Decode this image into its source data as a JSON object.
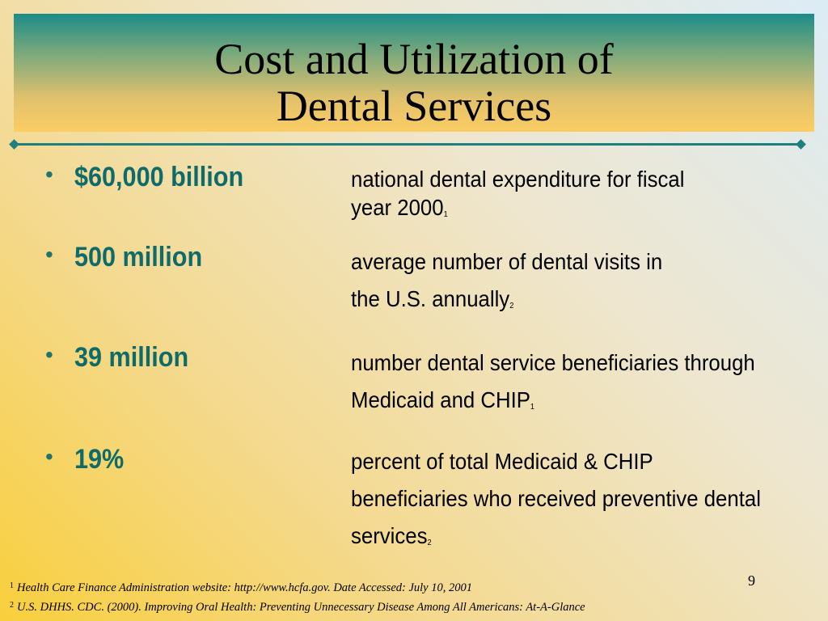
{
  "slide": {
    "title_line1": "Cost and Utilization of",
    "title_line2": "Dental Services",
    "page_number": "9"
  },
  "bullets": [
    {
      "symbol": "•",
      "stat": "$60,000 billion",
      "desc_lines": [
        "national dental expenditure for fiscal",
        "year 2000"
      ],
      "footnote_ref": "1"
    },
    {
      "symbol": "•",
      "stat": "500 million",
      "desc_lines": [
        "average number of dental visits in",
        "the U.S. annually"
      ],
      "footnote_ref": "2"
    },
    {
      "symbol": "•",
      "stat": "39 million",
      "desc_lines": [
        "number dental service beneficiaries through",
        "Medicaid and CHIP"
      ],
      "footnote_ref": "1"
    },
    {
      "symbol": "•",
      "stat": "19%",
      "desc_lines": [
        "percent of total Medicaid & CHIP",
        "beneficiaries who received preventive dental",
        "services"
      ],
      "footnote_ref": "2"
    }
  ],
  "footnotes": [
    {
      "num": "1",
      "text": "Health Care Finance Administration website:  http://www.hcfa.gov.  Date Accessed: July 10, 2001"
    },
    {
      "num": "2",
      "text": "U.S. DHHS. CDC. (2000). Improving Oral Health:  Preventing Unnecessary Disease Among All Americans: At-A-Glance"
    }
  ],
  "colors": {
    "accent_teal": "#1e7f7f",
    "stat_text": "#0f6b69",
    "background_gold": "#f9cf3c"
  }
}
